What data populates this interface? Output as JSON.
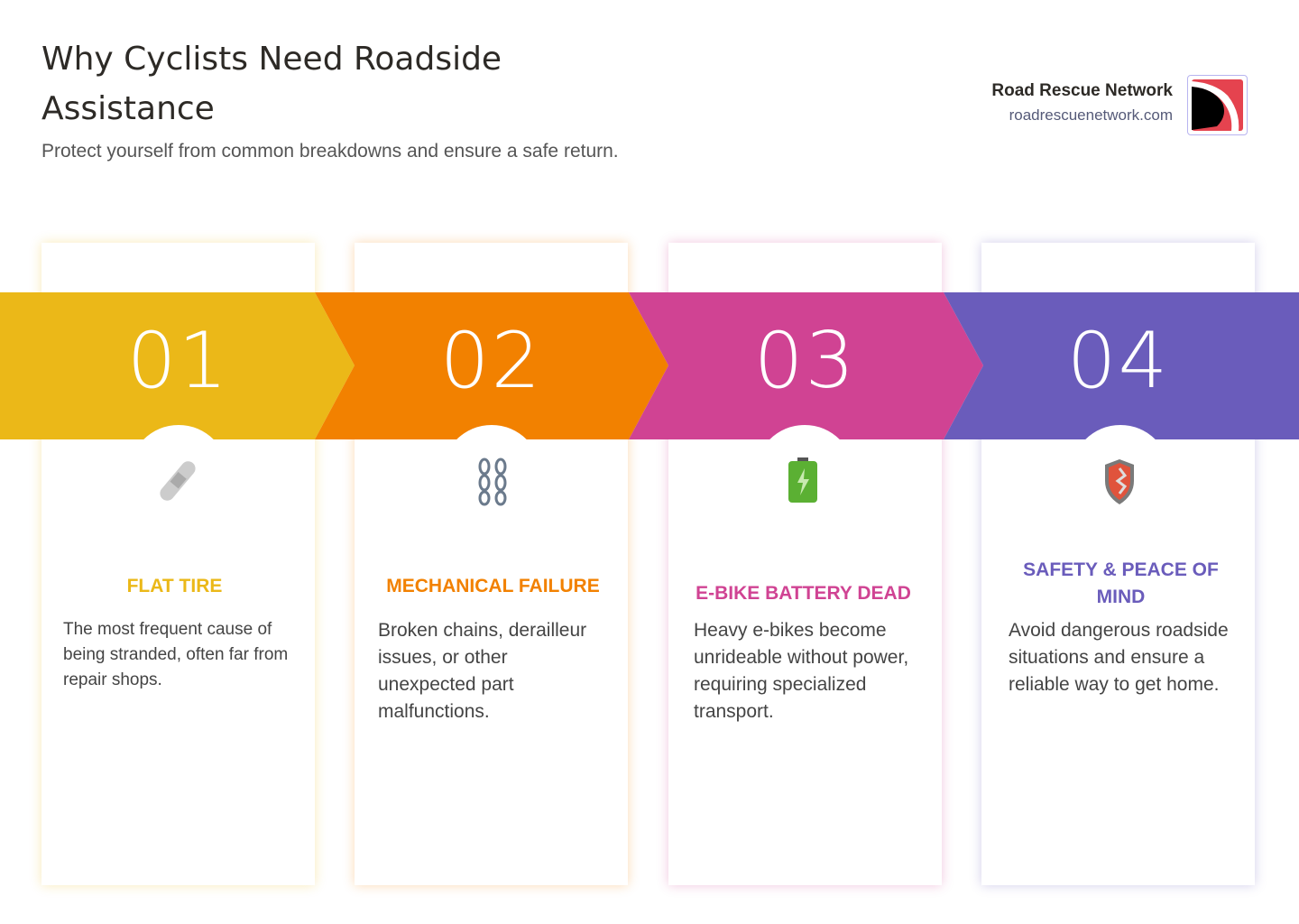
{
  "header": {
    "title": "Why Cyclists Need Roadside Assistance",
    "subtitle": "Protect yourself from common breakdowns and ensure a safe return."
  },
  "brand": {
    "name": "Road Rescue Network",
    "url": "roadrescuenetwork.com"
  },
  "colors": {
    "yellow": "#EBB818",
    "orange": "#F28100",
    "pink": "#D04393",
    "purple": "#6A5CBB"
  },
  "steps": [
    {
      "number": "01",
      "title": "FLAT TIRE",
      "text": "The most frequent cause of being stranded, often far from repair shops.",
      "icon": "bandage-icon"
    },
    {
      "number": "02",
      "title": "MECHANICAL FAILURE",
      "text": "Broken chains, derailleur issues, or other unexpected part malfunctions.",
      "icon": "chain-icon"
    },
    {
      "number": "03",
      "title": "E-BIKE BATTERY DEAD",
      "text": "Heavy e-bikes become unrideable without power, requiring specialized transport.",
      "icon": "battery-icon"
    },
    {
      "number": "04",
      "title": "SAFETY & PEACE OF MIND",
      "text": "Avoid dangerous roadside situations and ensure a reliable way to get home.",
      "icon": "shield-icon"
    }
  ]
}
